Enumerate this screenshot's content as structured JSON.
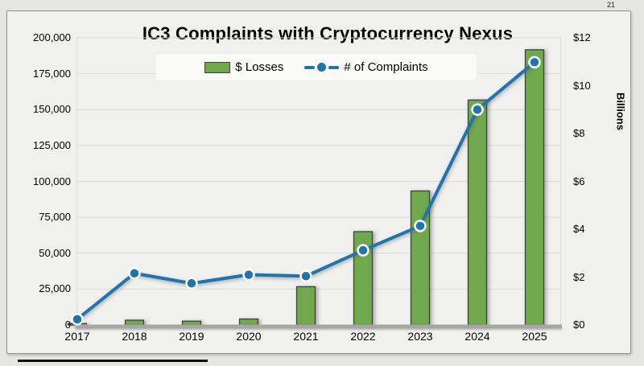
{
  "page": {
    "number": "21"
  },
  "chart_data": {
    "type": "combo-bar-line",
    "title": "IC3 Complaints with Cryptocurrency Nexus",
    "categories": [
      "2017",
      "2018",
      "2019",
      "2020",
      "2021",
      "2022",
      "2023",
      "2024",
      "2025"
    ],
    "series": [
      {
        "name": "$ Losses",
        "type": "bar",
        "axis": "right",
        "unit": "billions USD",
        "values": [
          0.06,
          0.2,
          0.16,
          0.25,
          1.6,
          3.9,
          5.6,
          9.4,
          11.5
        ],
        "fill_color": "#6fa84d",
        "border_color": "#3c4636"
      },
      {
        "name": "# of Complaints",
        "type": "line",
        "axis": "left",
        "unit": "complaints",
        "values": [
          4000,
          36000,
          29000,
          35000,
          34000,
          52000,
          69000,
          150000,
          183000
        ],
        "line_color": "#2173ae",
        "marker_ring_color": "#ffffff"
      }
    ],
    "left_axis": {
      "min": 0,
      "max": 200000,
      "tick_labels": [
        "0",
        "25,000",
        "50,000",
        "75,000",
        "100,000",
        "125,000",
        "150,000",
        "175,000",
        "200,000"
      ]
    },
    "right_axis": {
      "label": "Billions",
      "min": 0,
      "max": 12,
      "tick_labels": [
        "$0",
        "$2",
        "$4",
        "$6",
        "$8",
        "$10",
        "$12"
      ]
    },
    "legend": [
      "$ Losses",
      "# of Complaints"
    ],
    "grid": "horizontal, every 25,000 on left axis",
    "legend_position": "top-center",
    "colors": {
      "plot_background": "#f0f0ee",
      "gridline": "#d9d9d9",
      "baseline": "#a6a6a6"
    }
  }
}
